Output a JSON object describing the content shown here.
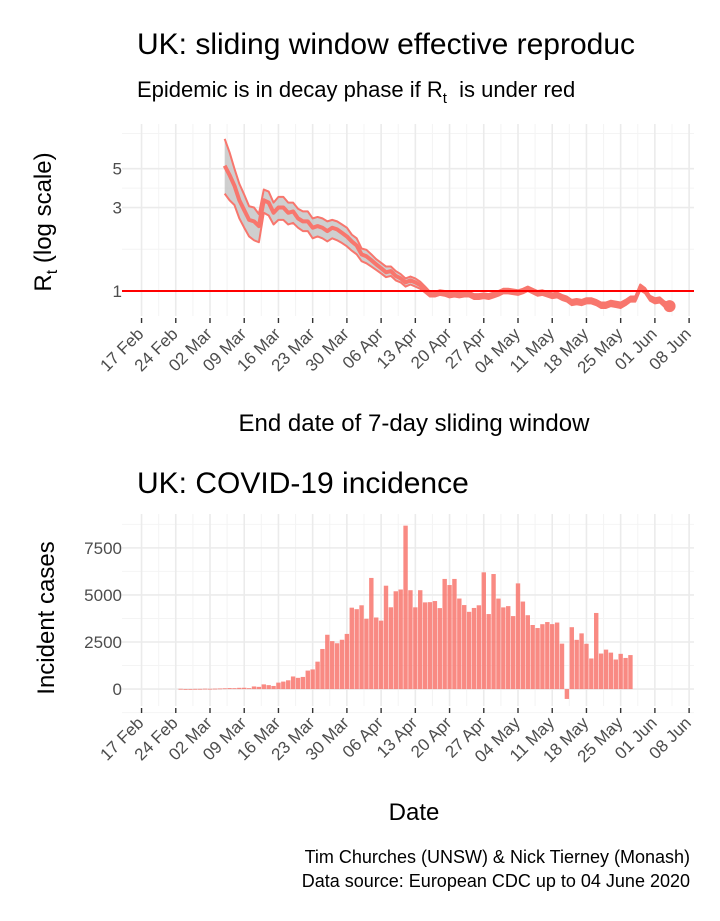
{
  "chart_data": [
    {
      "type": "line",
      "title": "UK: sliding window effective reproduc",
      "subtitle": {
        "before": "Epidemic is in decay phase if R",
        "sub": "t",
        "after": "  is under red"
      },
      "ylabel": {
        "main": "R",
        "sub": "t",
        "rest": " (log scale)"
      },
      "xlabel": "End date of 7-day sliding window",
      "y_scale": "log",
      "y_ticks": [
        1,
        3,
        5
      ],
      "y_range": [
        0.72,
        9.0
      ],
      "x_range": [
        "2020-02-13",
        "2020-06-09"
      ],
      "x_ticks": [
        "2020-02-17",
        "2020-02-24",
        "2020-03-02",
        "2020-03-09",
        "2020-03-16",
        "2020-03-23",
        "2020-03-30",
        "2020-04-06",
        "2020-04-13",
        "2020-04-20",
        "2020-04-27",
        "2020-05-04",
        "2020-05-11",
        "2020-05-18",
        "2020-05-25",
        "2020-06-01",
        "2020-06-08"
      ],
      "x_tick_labels": [
        "17 Feb",
        "24 Feb",
        "02 Mar",
        "09 Mar",
        "16 Mar",
        "23 Mar",
        "30 Mar",
        "06 Apr",
        "13 Apr",
        "20 Apr",
        "27 Apr",
        "04 May",
        "11 May",
        "18 May",
        "25 May",
        "01 Jun",
        "08 Jun"
      ],
      "reference_line": {
        "y": 1,
        "color": "#ff0000"
      },
      "series_color": "#f8766d",
      "ribbon_color": "#bfbfbf",
      "series": [
        {
          "role": "estimate",
          "x": [
            "2020-03-05",
            "2020-03-06",
            "2020-03-07",
            "2020-03-08",
            "2020-03-09",
            "2020-03-10",
            "2020-03-11",
            "2020-03-12",
            "2020-03-13",
            "2020-03-14",
            "2020-03-15",
            "2020-03-16",
            "2020-03-17",
            "2020-03-18",
            "2020-03-19",
            "2020-03-20",
            "2020-03-21",
            "2020-03-22",
            "2020-03-23",
            "2020-03-24",
            "2020-03-25",
            "2020-03-26",
            "2020-03-27",
            "2020-03-28",
            "2020-03-29",
            "2020-03-30",
            "2020-03-31",
            "2020-04-01",
            "2020-04-02",
            "2020-04-03",
            "2020-04-04",
            "2020-04-05",
            "2020-04-06",
            "2020-04-07",
            "2020-04-08",
            "2020-04-09",
            "2020-04-10",
            "2020-04-11",
            "2020-04-12",
            "2020-04-13",
            "2020-04-14",
            "2020-04-15",
            "2020-04-16",
            "2020-04-17",
            "2020-04-18",
            "2020-04-19",
            "2020-04-20",
            "2020-04-21",
            "2020-04-22",
            "2020-04-23",
            "2020-04-24",
            "2020-04-25",
            "2020-04-26",
            "2020-04-27",
            "2020-04-28",
            "2020-04-29",
            "2020-04-30",
            "2020-05-01",
            "2020-05-02",
            "2020-05-03",
            "2020-05-04",
            "2020-05-05",
            "2020-05-06",
            "2020-05-07",
            "2020-05-08",
            "2020-05-09",
            "2020-05-10",
            "2020-05-11",
            "2020-05-12",
            "2020-05-13",
            "2020-05-14",
            "2020-05-15",
            "2020-05-16",
            "2020-05-17",
            "2020-05-18",
            "2020-05-19",
            "2020-05-20",
            "2020-05-21",
            "2020-05-22",
            "2020-05-23",
            "2020-05-24",
            "2020-05-25",
            "2020-05-26",
            "2020-05-27",
            "2020-05-28",
            "2020-05-29",
            "2020-05-30",
            "2020-05-31",
            "2020-06-01",
            "2020-06-02",
            "2020-06-03",
            "2020-06-04"
          ],
          "values": [
            5.2,
            4.6,
            4.0,
            3.3,
            2.9,
            2.55,
            2.5,
            2.35,
            3.3,
            3.2,
            2.8,
            3.0,
            3.0,
            2.8,
            2.85,
            2.6,
            2.5,
            2.5,
            2.3,
            2.35,
            2.3,
            2.2,
            2.3,
            2.25,
            2.15,
            2.05,
            1.92,
            1.82,
            1.62,
            1.58,
            1.5,
            1.42,
            1.35,
            1.28,
            1.3,
            1.22,
            1.18,
            1.12,
            1.15,
            1.12,
            1.08,
            1.02,
            0.96,
            0.96,
            0.98,
            0.97,
            0.95,
            0.96,
            0.95,
            0.96,
            0.96,
            0.93,
            0.93,
            0.94,
            0.93,
            0.95,
            0.97,
            1.0,
            1.0,
            0.99,
            0.98,
            1.0,
            1.03,
            1.0,
            0.97,
            0.98,
            0.96,
            0.94,
            0.95,
            0.92,
            0.9,
            0.86,
            0.87,
            0.86,
            0.88,
            0.88,
            0.86,
            0.83,
            0.83,
            0.85,
            0.84,
            0.83,
            0.86,
            0.9,
            0.9,
            1.05,
            1.0,
            0.91,
            0.88,
            0.89,
            0.84,
            0.82
          ]
        },
        {
          "role": "upper",
          "values": [
            7.4,
            6.2,
            5.0,
            4.1,
            3.55,
            3.05,
            3.0,
            2.75,
            3.8,
            3.7,
            3.2,
            3.45,
            3.45,
            3.2,
            3.2,
            2.95,
            2.85,
            2.85,
            2.6,
            2.65,
            2.6,
            2.5,
            2.55,
            2.5,
            2.4,
            2.3,
            2.1,
            2.0,
            1.75,
            1.72,
            1.62,
            1.52,
            1.45,
            1.38,
            1.38,
            1.3,
            1.25,
            1.18,
            1.21,
            1.18,
            1.13,
            1.06,
            0.99,
            0.99,
            1.01,
            1.0,
            0.98,
            0.99,
            0.98,
            0.99,
            0.99,
            0.96,
            0.96,
            0.97,
            0.96,
            0.98,
            1.0,
            1.03,
            1.03,
            1.02,
            1.01,
            1.03,
            1.06,
            1.03,
            1.0,
            1.01,
            0.99,
            0.97,
            0.98,
            0.95,
            0.93,
            0.89,
            0.9,
            0.89,
            0.91,
            0.91,
            0.89,
            0.86,
            0.86,
            0.88,
            0.87,
            0.86,
            0.89,
            0.93,
            0.93,
            1.09,
            1.04,
            0.94,
            0.91,
            0.92,
            0.87,
            0.85
          ]
        },
        {
          "role": "lower",
          "values": [
            3.6,
            3.3,
            3.1,
            2.6,
            2.3,
            2.05,
            1.95,
            1.9,
            2.8,
            2.7,
            2.4,
            2.55,
            2.55,
            2.4,
            2.45,
            2.3,
            2.2,
            2.2,
            2.0,
            2.05,
            2.0,
            1.92,
            2.0,
            1.95,
            1.88,
            1.8,
            1.7,
            1.62,
            1.48,
            1.44,
            1.38,
            1.32,
            1.26,
            1.2,
            1.22,
            1.15,
            1.12,
            1.06,
            1.09,
            1.06,
            1.03,
            0.98,
            0.93,
            0.93,
            0.95,
            0.94,
            0.92,
            0.93,
            0.92,
            0.93,
            0.93,
            0.9,
            0.9,
            0.91,
            0.9,
            0.92,
            0.94,
            0.97,
            0.97,
            0.96,
            0.95,
            0.97,
            1.0,
            0.97,
            0.94,
            0.95,
            0.93,
            0.91,
            0.92,
            0.89,
            0.87,
            0.83,
            0.84,
            0.83,
            0.85,
            0.85,
            0.83,
            0.8,
            0.8,
            0.82,
            0.81,
            0.8,
            0.83,
            0.87,
            0.87,
            1.01,
            0.97,
            0.88,
            0.85,
            0.86,
            0.81,
            0.79
          ]
        }
      ]
    },
    {
      "type": "bar",
      "title": "UK: COVID-19 incidence",
      "xlabel": "Date",
      "ylabel": "Incident cases",
      "y_range": [
        -900,
        9300
      ],
      "y_ticks": [
        0,
        2500,
        5000,
        7500
      ],
      "x_range": [
        "2020-02-13",
        "2020-06-09"
      ],
      "x_ticks": [
        "2020-02-17",
        "2020-02-24",
        "2020-03-02",
        "2020-03-09",
        "2020-03-16",
        "2020-03-23",
        "2020-03-30",
        "2020-04-06",
        "2020-04-13",
        "2020-04-20",
        "2020-04-27",
        "2020-05-04",
        "2020-05-11",
        "2020-05-18",
        "2020-05-25",
        "2020-06-01",
        "2020-06-08"
      ],
      "x_tick_labels": [
        "17 Feb",
        "24 Feb",
        "02 Mar",
        "09 Mar",
        "16 Mar",
        "23 Mar",
        "30 Mar",
        "06 Apr",
        "13 Apr",
        "20 Apr",
        "27 Apr",
        "04 May",
        "11 May",
        "18 May",
        "25 May",
        "01 Jun",
        "08 Jun"
      ],
      "bar_color": "#f8766d",
      "start_date": "2020-02-25",
      "values": [
        13,
        4,
        5,
        10,
        11,
        20,
        15,
        23,
        31,
        40,
        52,
        46,
        66,
        70,
        48,
        139,
        117,
        249,
        208,
        165,
        342,
        397,
        466,
        669,
        596,
        645,
        981,
        1044,
        1456,
        2129,
        2885,
        2546,
        2433,
        2619,
        2930,
        4324,
        4244,
        4450,
        3735,
        5903,
        3802,
        3634,
        5491,
        4344,
        5195,
        5288,
        8681,
        5252,
        4342,
        5252,
        4605,
        4617,
        4676,
        4301,
        5850,
        5526,
        5850,
        4809,
        4463,
        4103,
        4309,
        4451,
        6201,
        3985,
        6111,
        4806,
        4339,
        4406,
        3877,
        5614,
        4649,
        3923,
        3403,
        3242,
        3446,
        3560,
        3450,
        3534,
        2412,
        -525,
        3287,
        2615,
        2959,
        2405,
        1625,
        4043,
        1887,
        2095,
        1936,
        1570,
        1871,
        1653,
        1805
      ]
    }
  ],
  "caption": {
    "line1": "Tim Churches (UNSW) & Nick Tierney (Monash)",
    "line2": "Data source: European CDC up to 04 June 2020"
  }
}
